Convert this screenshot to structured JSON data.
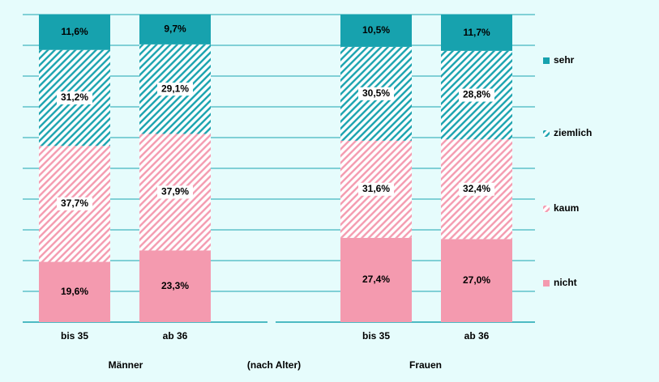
{
  "chart_data": {
    "type": "stacked_bar",
    "categories": [
      "bis 35",
      "ab 36",
      null,
      "bis 35",
      "ab 36"
    ],
    "group_labels": [
      "Männer",
      "(nach Alter)",
      "Frauen"
    ],
    "ylim": [
      0,
      100
    ],
    "yticks": [
      0,
      10,
      20,
      30,
      40,
      50,
      60,
      70,
      80,
      90,
      100
    ],
    "grid": true,
    "legend": "right",
    "series": [
      {
        "name": "nicht",
        "color": "#f49aaf",
        "fill": "solid",
        "values": [
          19.6,
          23.3,
          null,
          27.4,
          27.0
        ],
        "value_labels": [
          "19,6%",
          "23,3%",
          null,
          "27,4%",
          "27,0%"
        ]
      },
      {
        "name": "kaum",
        "color": "#f49aaf",
        "fill": "hatch",
        "values": [
          37.7,
          37.9,
          null,
          31.6,
          32.4
        ],
        "value_labels": [
          "37,7%",
          "37,9%",
          null,
          "31,6%",
          "32,4%"
        ]
      },
      {
        "name": "ziemlich",
        "color": "#17a2ae",
        "fill": "hatch",
        "values": [
          31.2,
          29.1,
          null,
          30.5,
          28.8
        ],
        "value_labels": [
          "31,2%",
          "29,1%",
          null,
          "30,5%",
          "28,8%"
        ]
      },
      {
        "name": "sehr",
        "color": "#17a2ae",
        "fill": "solid",
        "values": [
          11.6,
          9.7,
          null,
          10.5,
          11.7
        ],
        "value_labels": [
          "11,6%",
          "9,7%",
          null,
          "10,5%",
          "11,7%"
        ]
      }
    ]
  }
}
